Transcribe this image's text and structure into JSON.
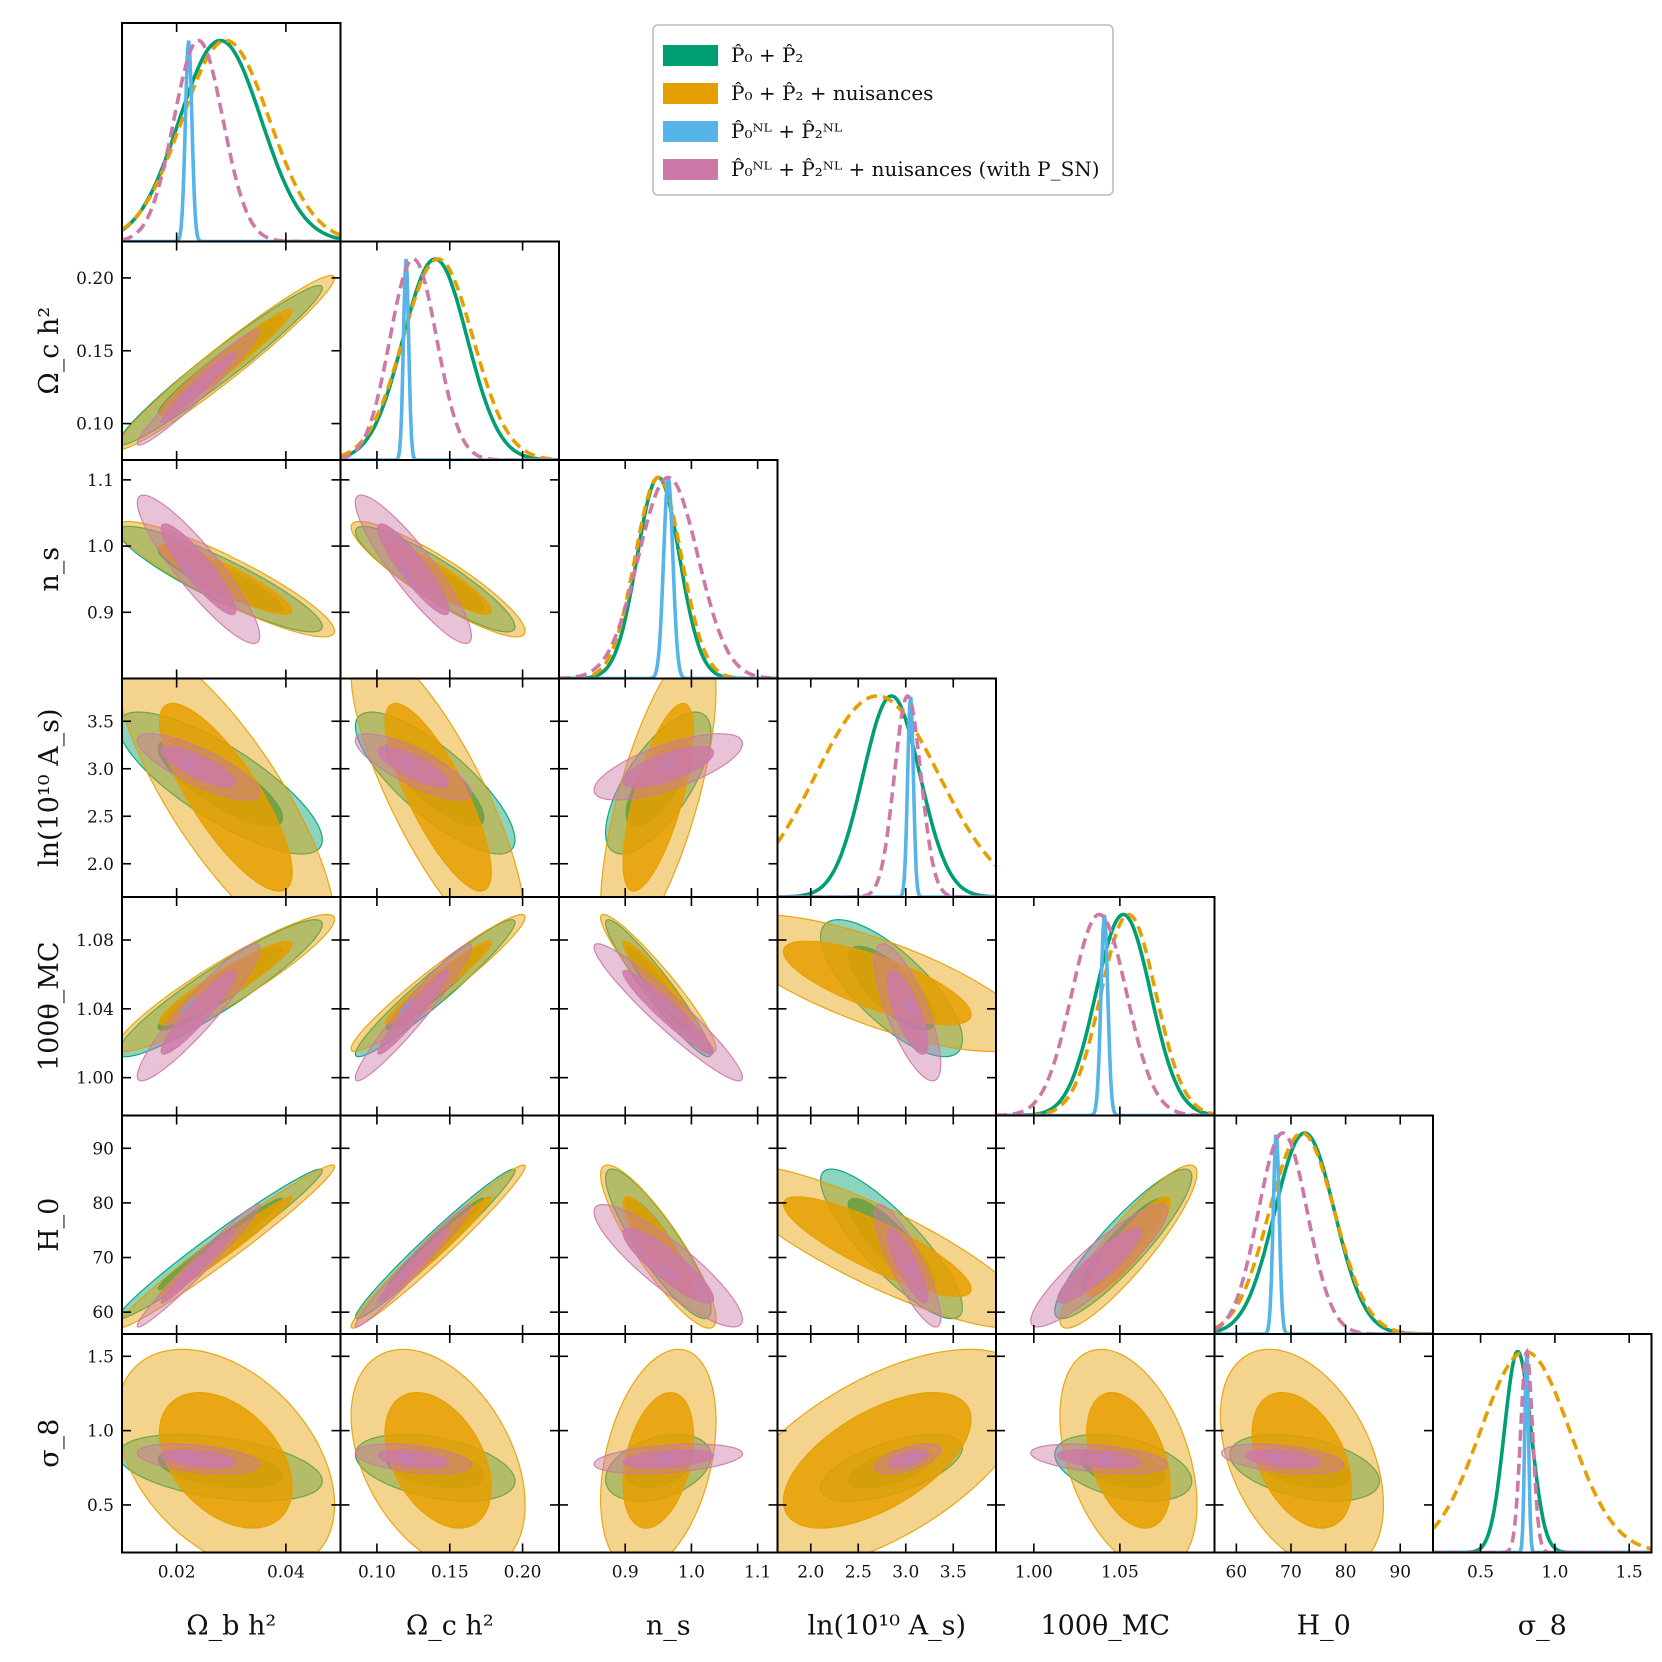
{
  "chart_data": {
    "type": "corner",
    "parameters": [
      {
        "key": "ombh2",
        "label": "Ω_b h²",
        "range": [
          0.01,
          0.05
        ],
        "ticks": [
          0.02,
          0.04
        ],
        "tick_labels": [
          "0.02",
          "0.04"
        ]
      },
      {
        "key": "omch2",
        "label": "Ω_c h²",
        "range": [
          0.075,
          0.225
        ],
        "ticks": [
          0.1,
          0.15,
          0.2
        ],
        "tick_labels": [
          "0.10",
          "0.15",
          "0.20"
        ]
      },
      {
        "key": "ns",
        "label": "n_s",
        "range": [
          0.8,
          1.13
        ],
        "ticks": [
          0.9,
          1.0,
          1.1
        ],
        "tick_labels": [
          "0.9",
          "1.0",
          "1.1"
        ]
      },
      {
        "key": "lnAs",
        "label": "ln(10¹⁰ A_s)",
        "range": [
          1.65,
          3.95
        ],
        "ticks": [
          2.0,
          2.5,
          3.0,
          3.5
        ],
        "tick_labels": [
          "2.0",
          "2.5",
          "3.0",
          "3.5"
        ]
      },
      {
        "key": "theta",
        "label": "100θ_MC",
        "range": [
          0.978,
          1.105
        ],
        "ticks": [
          1.0,
          1.04,
          1.08
        ],
        "tick_labels": [
          "1.00",
          "1.04",
          "1.08"
        ],
        "x_tick_labels": [
          "1.00",
          "1.05"
        ],
        "x_ticks": [
          1.0,
          1.05
        ]
      },
      {
        "key": "H0",
        "label": "H_0",
        "range": [
          56,
          96
        ],
        "ticks": [
          60,
          70,
          80,
          90
        ],
        "tick_labels": [
          "60",
          "70",
          "80",
          "90"
        ]
      },
      {
        "key": "sigma8",
        "label": "σ_8",
        "range": [
          0.18,
          1.65
        ],
        "ticks": [
          0.5,
          1.0,
          1.5
        ],
        "tick_labels": [
          "0.5",
          "1.0",
          "1.5"
        ]
      }
    ],
    "series": [
      {
        "id": "p02",
        "name": "P̂₀ + P̂₂",
        "color": "#009e73",
        "linestyle": "solid",
        "mean": [
          0.028,
          0.14,
          0.95,
          2.85,
          1.052,
          72.5,
          0.75
        ],
        "sigma": [
          0.0075,
          0.022,
          0.032,
          0.3,
          0.016,
          5.5,
          0.09
        ]
      },
      {
        "id": "p02nuis",
        "name": "P̂₀ + P̂₂ + nuisances",
        "color": "#e69f00",
        "linestyle": "dashed",
        "mean": [
          0.029,
          0.142,
          0.95,
          2.7,
          1.055,
          72.0,
          0.8
        ],
        "sigma": [
          0.008,
          0.024,
          0.035,
          0.65,
          0.016,
          6.0,
          0.3
        ]
      },
      {
        "id": "pnl",
        "name": "P̂₀ᴺᴸ + P̂₂ᴺᴸ",
        "color": "#56b4e9",
        "linestyle": "solid",
        "mean": [
          0.0222,
          0.12,
          0.965,
          3.05,
          1.041,
          67.3,
          0.81
        ],
        "sigma": [
          0.0006,
          0.0018,
          0.007,
          0.03,
          0.002,
          0.55,
          0.013
        ]
      },
      {
        "id": "pnlnuis",
        "name": "P̂₀ᴺᴸ + P̂₂ᴺᴸ + nuisances (with P_SN)",
        "color": "#cc79a7",
        "linestyle": "dashed",
        "mean": [
          0.024,
          0.125,
          0.965,
          3.02,
          1.038,
          68.5,
          0.81
        ],
        "sigma": [
          0.0045,
          0.016,
          0.045,
          0.14,
          0.016,
          4.5,
          0.04
        ]
      }
    ],
    "correlations": [
      {
        "i": 1,
        "j": 0,
        "rho": 0.97
      },
      {
        "i": 2,
        "j": 0,
        "rho": -0.9
      },
      {
        "i": 2,
        "j": 1,
        "rho": -0.9
      },
      {
        "i": 3,
        "j": 0,
        "rho": -0.8
      },
      {
        "i": 3,
        "j": 1,
        "rho": -0.8
      },
      {
        "i": 3,
        "j": 2,
        "rho": 0.7
      },
      {
        "i": 4,
        "j": 0,
        "rho": 0.93
      },
      {
        "i": 4,
        "j": 1,
        "rho": 0.96
      },
      {
        "i": 4,
        "j": 2,
        "rho": -0.95
      },
      {
        "i": 4,
        "j": 3,
        "rho": -0.75
      },
      {
        "i": 5,
        "j": 0,
        "rho": 0.98
      },
      {
        "i": 5,
        "j": 1,
        "rho": 0.98
      },
      {
        "i": 5,
        "j": 2,
        "rho": -0.88
      },
      {
        "i": 5,
        "j": 3,
        "rho": -0.85
      },
      {
        "i": 5,
        "j": 4,
        "rho": 0.9
      },
      {
        "i": 6,
        "j": 0,
        "rho": -0.4
      },
      {
        "i": 6,
        "j": 1,
        "rho": -0.4
      },
      {
        "i": 6,
        "j": 2,
        "rho": 0.35
      },
      {
        "i": 6,
        "j": 3,
        "rho": 0.6
      },
      {
        "i": 6,
        "j": 4,
        "rho": -0.4
      },
      {
        "i": 6,
        "j": 5,
        "rho": -0.4
      }
    ],
    "legend_position": "top-right"
  }
}
